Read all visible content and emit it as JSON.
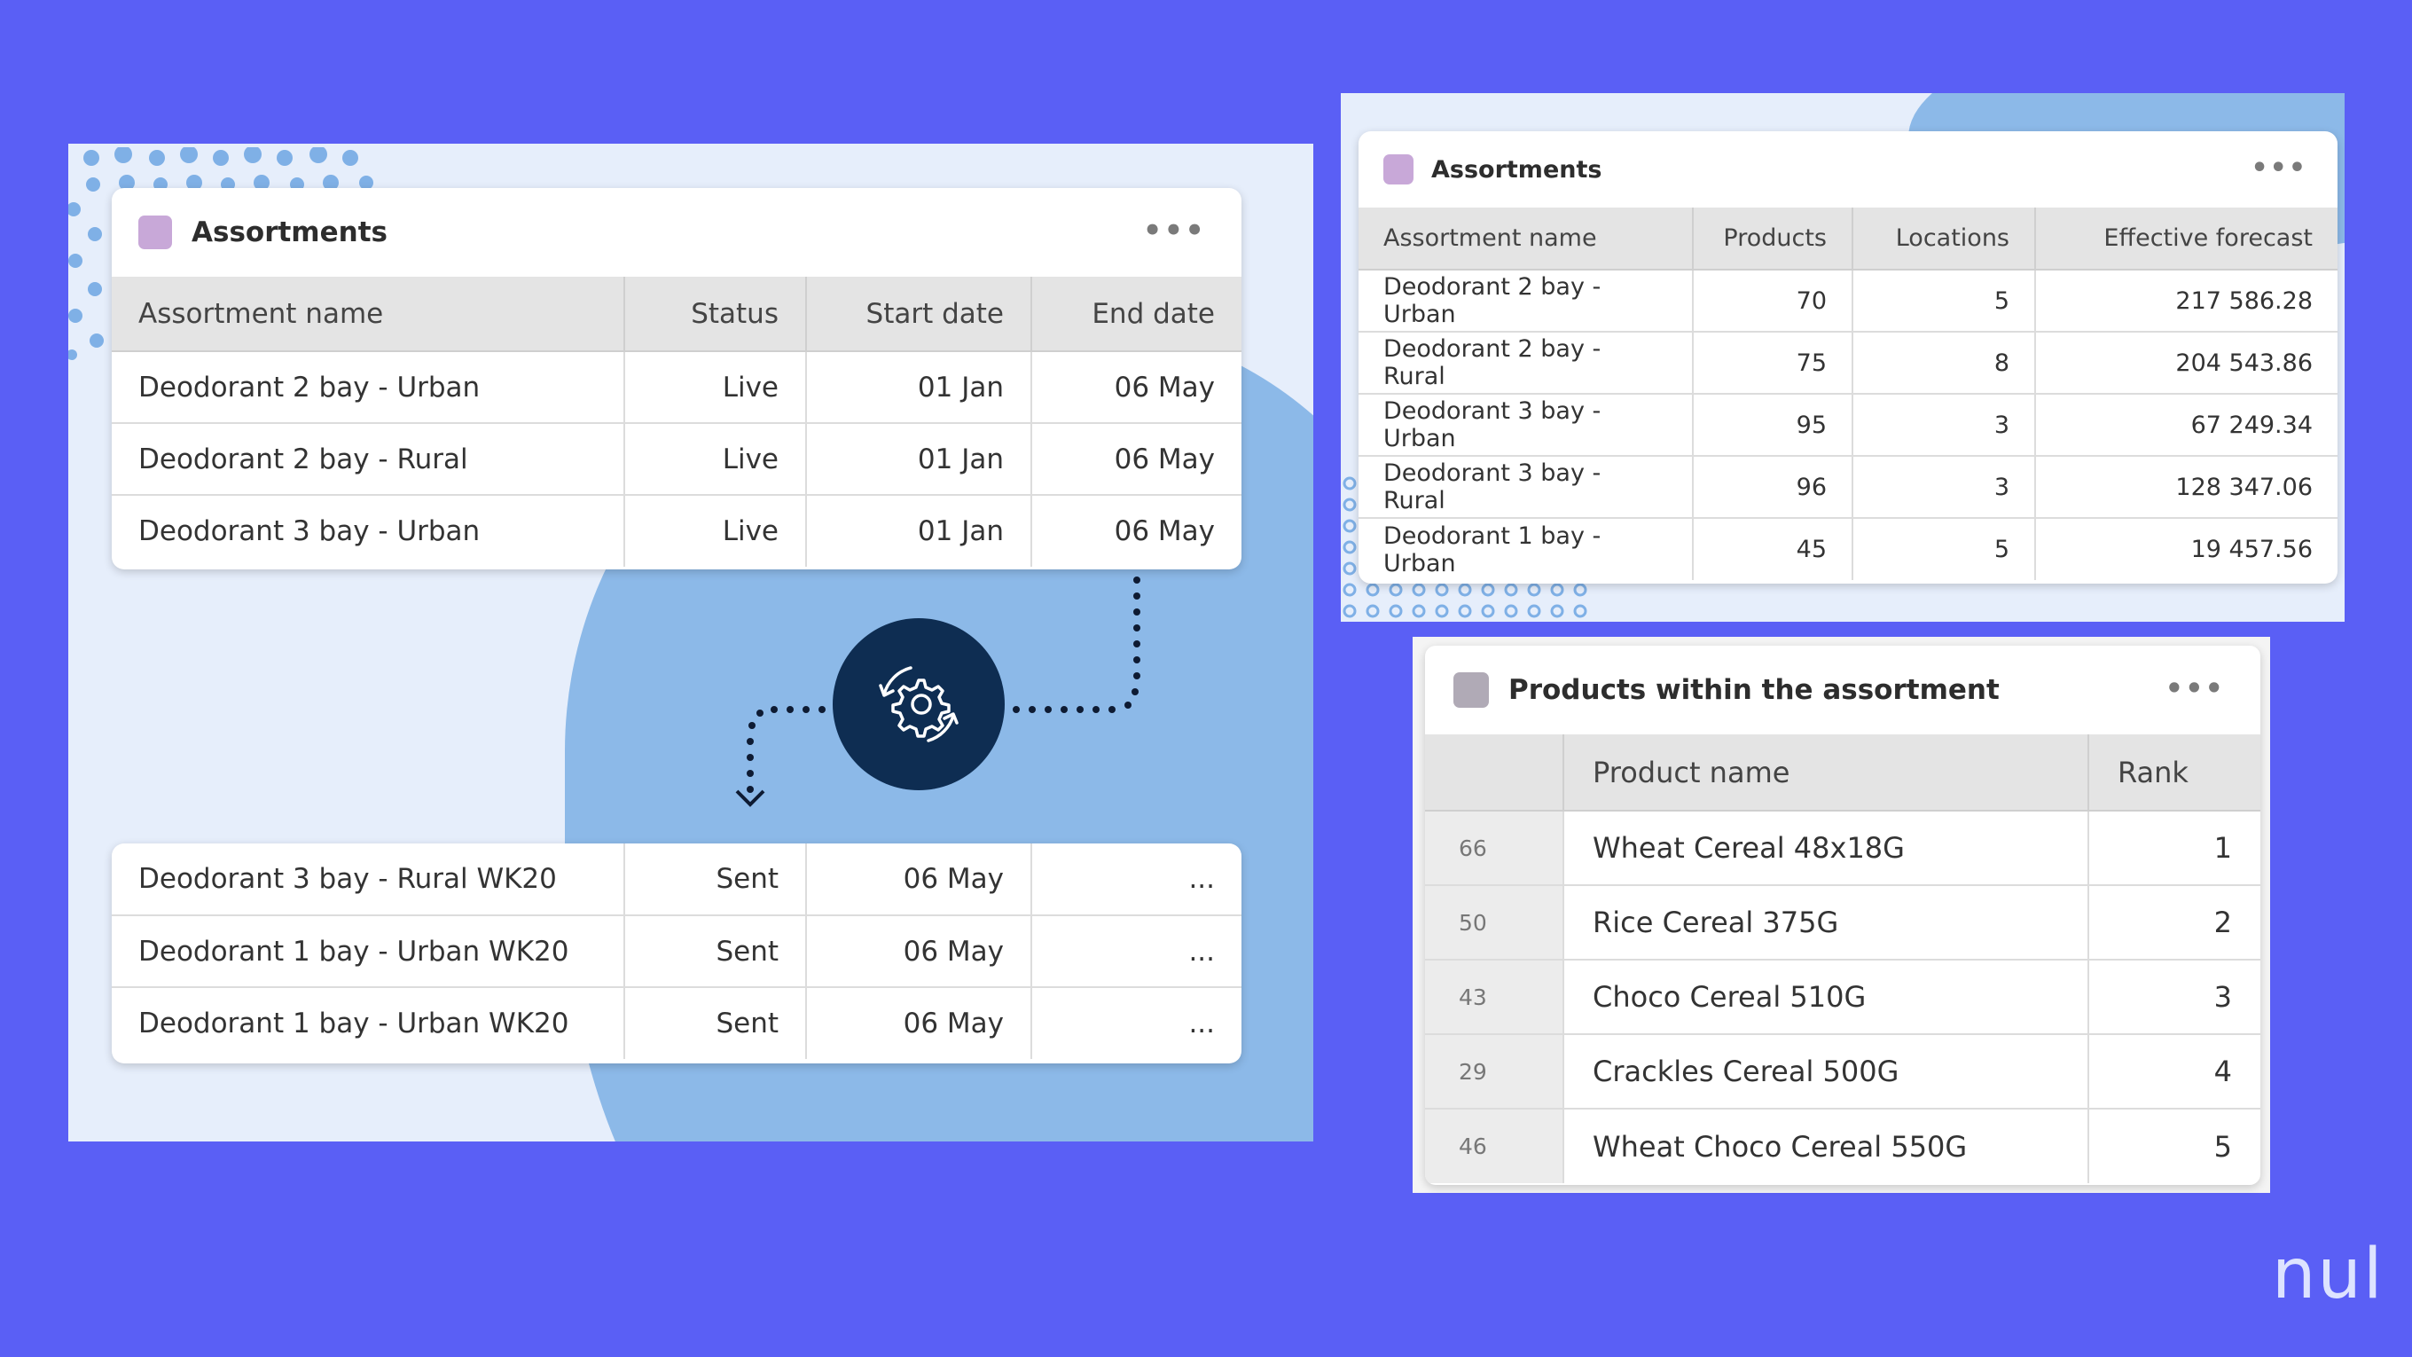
{
  "left_card_top": {
    "title": "Assortments",
    "menu": "•••",
    "columns": [
      "Assortment name",
      "Status",
      "Start date",
      "End date"
    ],
    "rows": [
      [
        "Deodorant 2 bay - Urban",
        "Live",
        "01 Jan",
        "06 May"
      ],
      [
        "Deodorant 2 bay - Rural",
        "Live",
        "01 Jan",
        "06 May"
      ],
      [
        "Deodorant 3 bay - Urban",
        "Live",
        "01 Jan",
        "06 May"
      ]
    ]
  },
  "left_card_bottom": {
    "rows": [
      [
        "Deodorant 3 bay - Rural WK20",
        "Sent",
        "06 May",
        "..."
      ],
      [
        "Deodorant 1 bay - Urban WK20",
        "Sent",
        "06 May",
        "..."
      ],
      [
        "Deodorant 1 bay - Urban WK20",
        "Sent",
        "06 May",
        "..."
      ]
    ]
  },
  "hub": {
    "icon": "gear-sync-icon"
  },
  "right_card_top": {
    "title": "Assortments",
    "menu": "•••",
    "columns": [
      "Assortment name",
      "Products",
      "Locations",
      "Effective forecast"
    ],
    "rows": [
      [
        "Deodorant 2 bay - Urban",
        "70",
        "5",
        "217 586.28"
      ],
      [
        "Deodorant 2 bay - Rural",
        "75",
        "8",
        "204 543.86"
      ],
      [
        "Deodorant 3 bay - Urban",
        "95",
        "3",
        "67 249.34"
      ],
      [
        "Deodorant 3 bay - Rural",
        "96",
        "3",
        "128 347.06"
      ],
      [
        "Deodorant 1 bay - Urban",
        "45",
        "5",
        "19 457.56"
      ]
    ]
  },
  "right_card_bottom": {
    "title": "Products within the assortment",
    "menu": "•••",
    "columns": [
      "",
      "Product name",
      "Rank"
    ],
    "rows": [
      [
        "66",
        "Wheat Cereal 48x18G",
        "1"
      ],
      [
        "50",
        "Rice Cereal 375G",
        "2"
      ],
      [
        "43",
        "Choco Cereal 510G",
        "3"
      ],
      [
        "29",
        "Crackles Cereal 500G",
        "4"
      ],
      [
        "46",
        "Wheat Choco Cereal 550G",
        "5"
      ]
    ]
  },
  "brand": {
    "text": "nul"
  },
  "colors": {
    "background": "#5A5FF5",
    "panel": "#E6EEFB",
    "blob": "#8CB9E8",
    "hub": "#0E2D52",
    "swatch": "#C8A8D8"
  }
}
